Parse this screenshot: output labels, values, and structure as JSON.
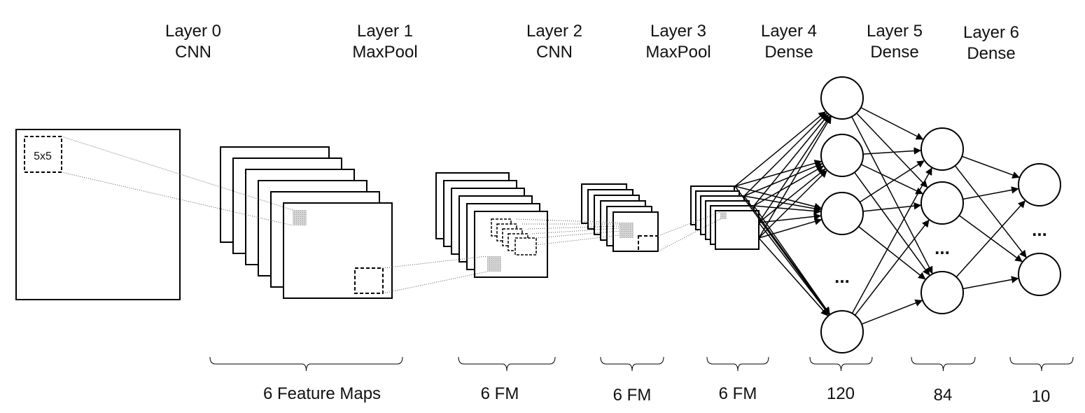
{
  "layers": [
    {
      "name": "Layer 0",
      "type": "CNN"
    },
    {
      "name": "Layer 1",
      "type": "MaxPool"
    },
    {
      "name": "Layer 2",
      "type": "CNN"
    },
    {
      "name": "Layer 3",
      "type": "MaxPool"
    },
    {
      "name": "Layer 4",
      "type": "Dense"
    },
    {
      "name": "Layer 5",
      "type": "Dense"
    },
    {
      "name": "Layer 6",
      "type": "Dense"
    }
  ],
  "kernel_label": "5x5",
  "ellipsis": "...",
  "braces": [
    {
      "label": "6 Feature Maps"
    },
    {
      "label": "6 FM"
    },
    {
      "label": "6 FM"
    },
    {
      "label": "6 FM"
    },
    {
      "label": "120"
    },
    {
      "label": "84"
    },
    {
      "label": "10"
    }
  ]
}
